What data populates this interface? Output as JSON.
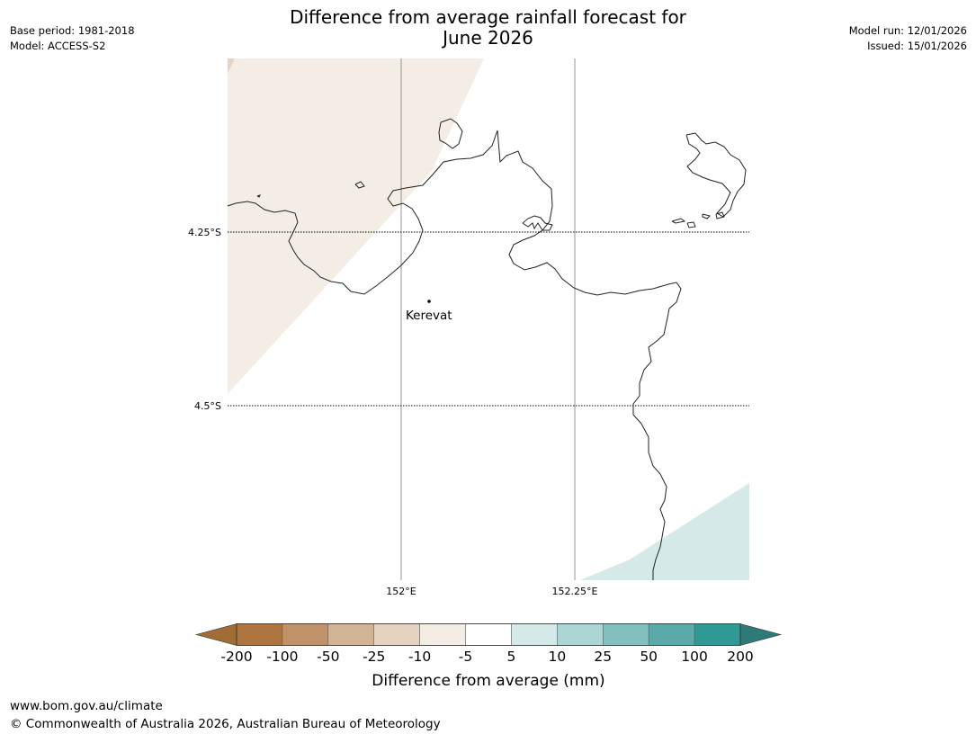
{
  "header": {
    "title_line1": "Difference from average rainfall forecast for",
    "title_line2": "June 2026",
    "base_period": "Base period: 1981-2018",
    "model": "Model: ACCESS-S2",
    "model_run": "Model run: 12/01/2026",
    "issued": "Issued: 15/01/2026"
  },
  "map": {
    "lat_labels": [
      "4.25°S",
      "4.5°S"
    ],
    "lon_labels": [
      "152°E",
      "152.25°E"
    ],
    "place": {
      "name": "Kerevat"
    },
    "colors": {
      "coastline": "#222222",
      "gridline": "#888888",
      "dry_shade": "#f4ede6",
      "wet_shade": "#d5e9e8",
      "dry_corner": "#e6d5c3"
    }
  },
  "legend": {
    "title": "Difference from average (mm)",
    "ticks": [
      "-200",
      "-100",
      "-50",
      "-25",
      "-10",
      "-5",
      "5",
      "10",
      "25",
      "50",
      "100",
      "200"
    ],
    "colors": [
      "#a26d35",
      "#af7540",
      "#c1926a",
      "#d3b395",
      "#e5d2c0",
      "#f4ede6",
      "#ffffff",
      "#d5e9e8",
      "#acd5d5",
      "#82bfbd",
      "#5aaaa9",
      "#309995",
      "#2d7a77"
    ]
  },
  "footer": {
    "url": "www.bom.gov.au/climate",
    "copyright": "© Commonwealth of Australia 2026, Australian Bureau of Meteorology"
  }
}
